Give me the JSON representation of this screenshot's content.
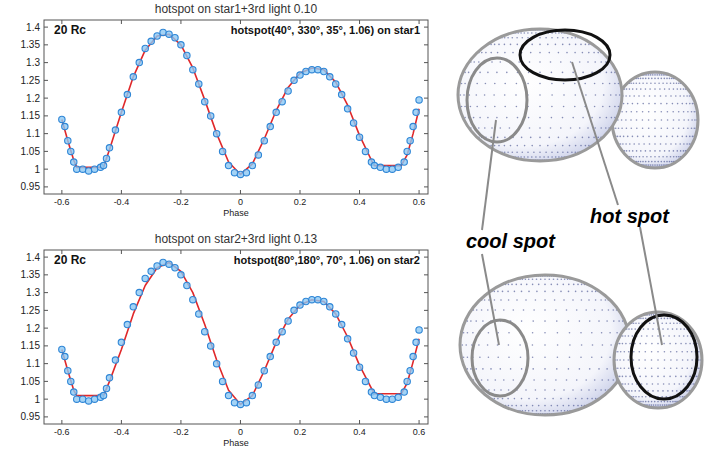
{
  "chart_data": [
    {
      "type": "scatter",
      "title": "hotspot on star1+3rd light 0.10",
      "xlabel": "Phase",
      "annotations": [
        "20 Rc",
        "hotspot(40°, 330°, 35°, 1.06)  on star1"
      ],
      "xlim": [
        -0.66,
        0.63
      ],
      "ylim": [
        0.93,
        1.42
      ],
      "xticks": [
        -0.6,
        -0.4,
        -0.2,
        0,
        0.2,
        0.4,
        0.6
      ],
      "yticks": [
        0.95,
        1,
        1.05,
        1.1,
        1.15,
        1.2,
        1.25,
        1.3,
        1.35,
        1.4
      ],
      "grid": false,
      "series": [
        {
          "type": "scatter",
          "marker": "circle",
          "color": "#2f86d6",
          "x": [
            -0.6,
            -0.59,
            -0.58,
            -0.57,
            -0.56,
            -0.55,
            -0.53,
            -0.51,
            -0.49,
            -0.47,
            -0.46,
            -0.45,
            -0.44,
            -0.42,
            -0.4,
            -0.38,
            -0.36,
            -0.34,
            -0.32,
            -0.3,
            -0.28,
            -0.26,
            -0.24,
            -0.22,
            -0.2,
            -0.18,
            -0.16,
            -0.14,
            -0.12,
            -0.1,
            -0.08,
            -0.06,
            -0.04,
            -0.02,
            0,
            0.02,
            0.04,
            0.06,
            0.08,
            0.1,
            0.12,
            0.14,
            0.16,
            0.18,
            0.2,
            0.22,
            0.24,
            0.26,
            0.28,
            0.3,
            0.32,
            0.34,
            0.36,
            0.38,
            0.4,
            0.42,
            0.44,
            0.45,
            0.47,
            0.49,
            0.51,
            0.53,
            0.55,
            0.56,
            0.57,
            0.58,
            0.59,
            0.6
          ],
          "values": [
            1.14,
            1.12,
            1.08,
            1.05,
            1.02,
            1.0,
            1.0,
            0.995,
            1.0,
            1.005,
            1.01,
            1.03,
            1.06,
            1.11,
            1.16,
            1.21,
            1.26,
            1.3,
            1.34,
            1.36,
            1.375,
            1.385,
            1.38,
            1.37,
            1.35,
            1.32,
            1.28,
            1.24,
            1.19,
            1.15,
            1.1,
            1.05,
            1.01,
            0.99,
            0.985,
            0.99,
            1.01,
            1.04,
            1.08,
            1.12,
            1.16,
            1.19,
            1.22,
            1.25,
            1.265,
            1.275,
            1.28,
            1.28,
            1.275,
            1.26,
            1.24,
            1.21,
            1.17,
            1.13,
            1.09,
            1.05,
            1.02,
            1.01,
            1.005,
            1.0,
            1.0,
            1.005,
            1.02,
            1.05,
            1.08,
            1.12,
            1.16,
            1.195
          ]
        },
        {
          "type": "line",
          "line_style": "solid",
          "color": "#e0282a",
          "x": [
            -0.6,
            -0.58,
            -0.56,
            -0.55,
            -0.46,
            -0.44,
            -0.4,
            -0.36,
            -0.32,
            -0.28,
            -0.24,
            -0.2,
            -0.16,
            -0.12,
            -0.08,
            -0.04,
            0,
            0.04,
            0.08,
            0.12,
            0.16,
            0.2,
            0.24,
            0.28,
            0.32,
            0.36,
            0.4,
            0.44,
            0.45,
            0.54,
            0.56,
            0.58,
            0.6
          ],
          "values": [
            1.14,
            1.08,
            1.025,
            1.005,
            1.005,
            1.055,
            1.16,
            1.26,
            1.335,
            1.375,
            1.38,
            1.35,
            1.285,
            1.195,
            1.1,
            1.02,
            0.985,
            1.015,
            1.085,
            1.165,
            1.23,
            1.27,
            1.285,
            1.28,
            1.245,
            1.18,
            1.095,
            1.025,
            1.01,
            1.01,
            1.04,
            1.1,
            1.17
          ]
        }
      ]
    },
    {
      "type": "scatter",
      "title": "hotspot on star2+3rd light 0.13",
      "xlabel": "Phase",
      "annotations": [
        "20 Rc",
        "hotspot(80°,180°, 70°, 1.06)  on star2"
      ],
      "xlim": [
        -0.66,
        0.63
      ],
      "ylim": [
        0.93,
        1.42
      ],
      "xticks": [
        -0.6,
        -0.4,
        -0.2,
        0,
        0.2,
        0.4,
        0.6
      ],
      "yticks": [
        0.95,
        1,
        1.05,
        1.1,
        1.15,
        1.2,
        1.25,
        1.3,
        1.35,
        1.4
      ],
      "grid": false,
      "series": [
        {
          "type": "scatter",
          "marker": "circle",
          "color": "#2f86d6",
          "x": [
            -0.6,
            -0.59,
            -0.58,
            -0.57,
            -0.56,
            -0.55,
            -0.53,
            -0.51,
            -0.49,
            -0.47,
            -0.46,
            -0.45,
            -0.44,
            -0.42,
            -0.4,
            -0.38,
            -0.36,
            -0.34,
            -0.32,
            -0.3,
            -0.28,
            -0.26,
            -0.24,
            -0.22,
            -0.2,
            -0.18,
            -0.16,
            -0.14,
            -0.12,
            -0.1,
            -0.08,
            -0.06,
            -0.04,
            -0.02,
            0,
            0.02,
            0.04,
            0.06,
            0.08,
            0.1,
            0.12,
            0.14,
            0.16,
            0.18,
            0.2,
            0.22,
            0.24,
            0.26,
            0.28,
            0.3,
            0.32,
            0.34,
            0.36,
            0.38,
            0.4,
            0.42,
            0.44,
            0.45,
            0.47,
            0.49,
            0.51,
            0.53,
            0.55,
            0.56,
            0.57,
            0.58,
            0.59,
            0.6
          ],
          "values": [
            1.14,
            1.12,
            1.08,
            1.05,
            1.02,
            1.0,
            1.0,
            0.995,
            1.0,
            1.005,
            1.01,
            1.03,
            1.06,
            1.11,
            1.16,
            1.21,
            1.26,
            1.3,
            1.34,
            1.36,
            1.375,
            1.385,
            1.38,
            1.37,
            1.35,
            1.32,
            1.28,
            1.24,
            1.19,
            1.15,
            1.1,
            1.05,
            1.01,
            0.99,
            0.985,
            0.99,
            1.01,
            1.04,
            1.08,
            1.12,
            1.16,
            1.19,
            1.22,
            1.25,
            1.265,
            1.275,
            1.28,
            1.28,
            1.275,
            1.26,
            1.24,
            1.21,
            1.17,
            1.13,
            1.09,
            1.05,
            1.02,
            1.01,
            1.005,
            1.0,
            1.0,
            1.005,
            1.02,
            1.05,
            1.08,
            1.12,
            1.16,
            1.195
          ]
        },
        {
          "type": "line",
          "line_style": "solid",
          "color": "#e0282a",
          "x": [
            -0.6,
            -0.58,
            -0.56,
            -0.55,
            -0.46,
            -0.44,
            -0.4,
            -0.36,
            -0.32,
            -0.28,
            -0.24,
            -0.2,
            -0.16,
            -0.12,
            -0.08,
            -0.04,
            0,
            0.04,
            0.08,
            0.12,
            0.16,
            0.2,
            0.24,
            0.28,
            0.32,
            0.36,
            0.4,
            0.44,
            0.45,
            0.54,
            0.56,
            0.58,
            0.6
          ],
          "values": [
            1.14,
            1.08,
            1.025,
            1.01,
            1.01,
            1.05,
            1.14,
            1.24,
            1.32,
            1.37,
            1.385,
            1.36,
            1.3,
            1.21,
            1.11,
            1.025,
            0.985,
            1.01,
            1.08,
            1.16,
            1.225,
            1.265,
            1.28,
            1.275,
            1.24,
            1.175,
            1.095,
            1.03,
            1.015,
            1.015,
            1.045,
            1.105,
            1.17
          ]
        }
      ]
    }
  ],
  "diagram": {
    "labels": {
      "cool_spot": "cool spot",
      "hot_spot": "hot spot"
    }
  }
}
